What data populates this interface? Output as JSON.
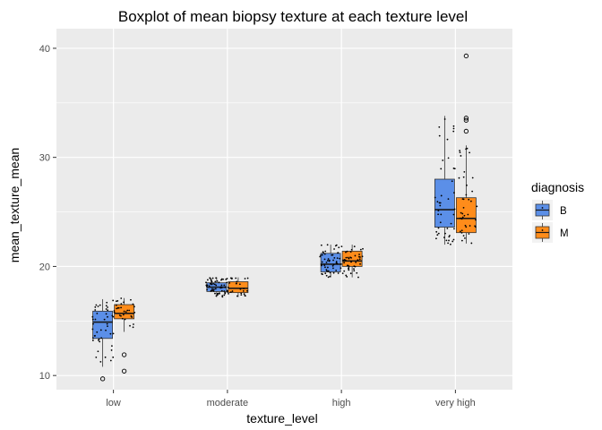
{
  "chart_data": {
    "type": "boxplot",
    "title": "Boxplot of mean biopsy texture at each texture level",
    "xlabel": "texture_level",
    "ylabel": "mean_texture_mean",
    "categories": [
      "low",
      "moderate",
      "high",
      "very high"
    ],
    "yticks": [
      10,
      20,
      30,
      40
    ],
    "ylim": [
      8.7,
      41.8
    ],
    "grid": true,
    "legend": {
      "title": "diagnosis",
      "position": "right"
    },
    "series": [
      {
        "name": "B",
        "color": "#5B8FE8",
        "boxes": [
          {
            "category": "low",
            "min": 10.8,
            "q1": 13.4,
            "median": 14.9,
            "q3": 15.9,
            "max": 17.0,
            "outliers": [
              9.7
            ]
          },
          {
            "category": "moderate",
            "min": 17.2,
            "q1": 17.7,
            "median": 18.1,
            "q3": 18.5,
            "max": 19.0,
            "outliers": []
          },
          {
            "category": "high",
            "min": 19.0,
            "q1": 19.5,
            "median": 20.2,
            "q3": 21.2,
            "max": 22.0,
            "outliers": []
          },
          {
            "category": "very high",
            "min": 22.0,
            "q1": 23.6,
            "median": 25.2,
            "q3": 28.0,
            "max": 33.8,
            "outliers": []
          }
        ]
      },
      {
        "name": "M",
        "color": "#FF8C1A",
        "boxes": [
          {
            "category": "low",
            "min": 14.0,
            "q1": 15.2,
            "median": 15.7,
            "q3": 16.5,
            "max": 17.1,
            "outliers": [
              10.4,
              11.9
            ]
          },
          {
            "category": "moderate",
            "min": 17.2,
            "q1": 17.6,
            "median": 18.0,
            "q3": 18.6,
            "max": 19.0,
            "outliers": []
          },
          {
            "category": "high",
            "min": 19.0,
            "q1": 20.0,
            "median": 20.5,
            "q3": 21.4,
            "max": 22.0,
            "outliers": []
          },
          {
            "category": "very high",
            "min": 22.1,
            "q1": 23.1,
            "median": 24.4,
            "q3": 26.3,
            "max": 31.1,
            "outliers": [
              32.4,
              33.4,
              33.6,
              39.3
            ]
          }
        ]
      }
    ]
  }
}
